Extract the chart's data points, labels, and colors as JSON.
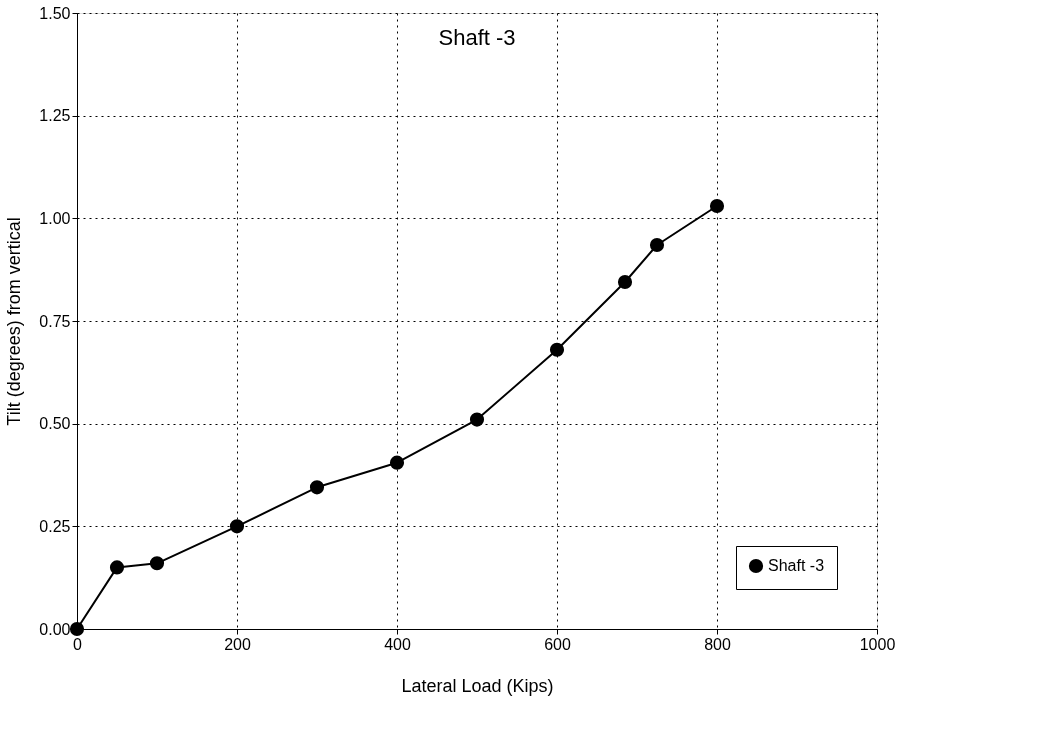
{
  "chart_data": {
    "type": "line",
    "title": "Shaft -3",
    "xlabel": "Lateral Load (Kips)",
    "ylabel": "Tilt (degrees) from vertical",
    "x": [
      0,
      50,
      100,
      200,
      300,
      400,
      500,
      600,
      685,
      725,
      800
    ],
    "series": [
      {
        "name": "Shaft -3",
        "color": "#000000",
        "values": [
          0,
          0.15,
          0.16,
          0.25,
          0.345,
          0.405,
          0.51,
          0.68,
          0.845,
          0.935,
          1.03
        ]
      }
    ],
    "xlim": [
      0,
      1000
    ],
    "xticks": [
      0,
      200,
      400,
      600,
      800,
      1000
    ],
    "ylim": [
      0,
      1.5
    ],
    "yticks": [
      {
        "value": 0,
        "label": "0.00"
      },
      {
        "value": 0.25,
        "label": "0.25"
      },
      {
        "value": 0.5,
        "label": "0.50"
      },
      {
        "value": 0.75,
        "label": "0.75"
      },
      {
        "value": 1.0,
        "label": "1.00"
      },
      {
        "value": 1.25,
        "label": "1.25"
      },
      {
        "value": 1.5,
        "label": "1.50"
      }
    ],
    "grid": true,
    "legend": "bottom right",
    "marker": "circle",
    "line_style": "solid"
  }
}
